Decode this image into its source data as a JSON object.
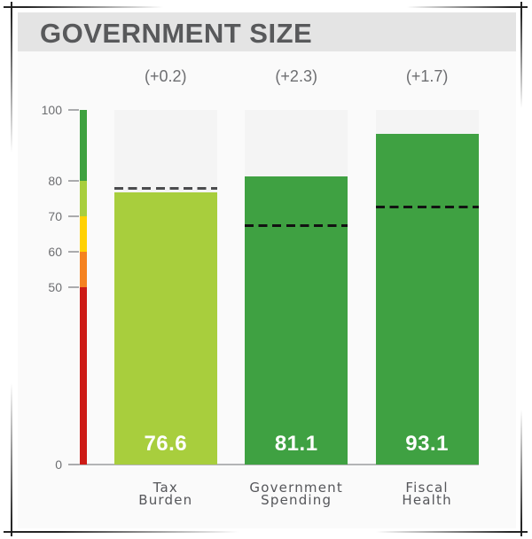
{
  "chart_data": {
    "type": "bar",
    "title": "GOVERNMENT SIZE",
    "axis": {
      "min": 0,
      "max": 100,
      "ticks": [
        100,
        80,
        70,
        60,
        50,
        0
      ]
    },
    "scale_segments": [
      {
        "from": 80,
        "to": 100,
        "color": "#3ea13f"
      },
      {
        "from": 70,
        "to": 80,
        "color": "#a8ce3d"
      },
      {
        "from": 60,
        "to": 70,
        "color": "#ffd103"
      },
      {
        "from": 50,
        "to": 60,
        "color": "#f58220"
      },
      {
        "from": 0,
        "to": 50,
        "color": "#cd1b16"
      }
    ],
    "bars": [
      {
        "label": [
          "Tax",
          "Burden"
        ],
        "value": 76.6,
        "display": "76.6",
        "change": "(+0.2)",
        "color": "#a8ce3d",
        "average": 77.8,
        "average_color": "#4b4c4e"
      },
      {
        "label": [
          "Government",
          "Spending"
        ],
        "value": 81.1,
        "display": "81.1",
        "change": "(+2.3)",
        "color": "#3fa142",
        "average": 67.3,
        "average_color": "#121212"
      },
      {
        "label": [
          "Fiscal",
          "Health"
        ],
        "value": 93.1,
        "display": "93.1",
        "change": "(+1.7)",
        "color": "#3fa142",
        "average": 72.4,
        "average_color": "#121212"
      }
    ]
  },
  "colors": {
    "panel_bg": "#fafafa",
    "header_bg": "#e4e4e4",
    "title_text": "#58595b",
    "annotation_text": "#6d6e71",
    "axis_text": "#6d6e71",
    "bar_track": "#f4f4f4",
    "value_text": "#ffffff",
    "label_text": "#55565a"
  }
}
